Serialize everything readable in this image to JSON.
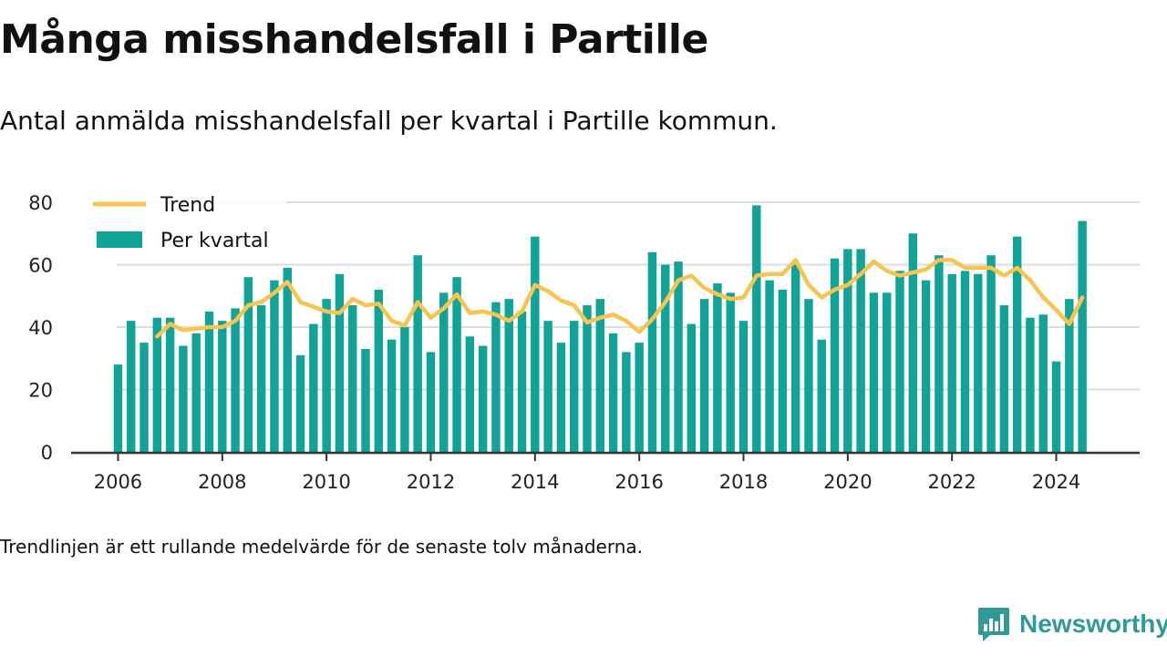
{
  "header": {
    "title": "Många misshandelsfall i Partille",
    "subtitle": "Antal anmälda misshandelsfall per kvartal i Partille kommun."
  },
  "footnote": "Trendlinjen är ett rullande medelvärde för de senaste tolv månaderna.",
  "brand": {
    "name": "Newsworthy",
    "icon": "bar-chart-speech-bubble-icon"
  },
  "colors": {
    "bars": "#0fa497",
    "trend": "#f8c450",
    "grid": "#dddddd",
    "axis": "#333333",
    "brand": "#2e9b98"
  },
  "chart_data": {
    "type": "bar",
    "title": "Många misshandelsfall i Partille",
    "subtitle": "Antal anmälda misshandelsfall per kvartal i Partille kommun.",
    "legend": {
      "placement": "top-left",
      "entries": [
        "Trend",
        "Per kvartal"
      ]
    },
    "grid": true,
    "ylim": [
      0,
      80
    ],
    "yticks": [
      0,
      20,
      40,
      60,
      80
    ],
    "xlim": [
      2005.1,
      2025.6
    ],
    "xticks": [
      2006,
      2008,
      2010,
      2012,
      2014,
      2016,
      2018,
      2020,
      2022,
      2024
    ],
    "x_start": 2006.0,
    "x_step": 0.25,
    "series": [
      {
        "name": "Per kvartal",
        "kind": "bar",
        "values": [
          28,
          42,
          35,
          43,
          43,
          34,
          38,
          45,
          42,
          46,
          56,
          47,
          55,
          59,
          31,
          41,
          49,
          57,
          47,
          33,
          52,
          36,
          40,
          63,
          32,
          51,
          56,
          37,
          34,
          48,
          49,
          45,
          69,
          42,
          35,
          42,
          47,
          49,
          38,
          32,
          35,
          64,
          60,
          61,
          41,
          49,
          54,
          51,
          42,
          79,
          55,
          52,
          60,
          49,
          36,
          62,
          65,
          65,
          51,
          51,
          58,
          70,
          55,
          63,
          57,
          58,
          57,
          63,
          47,
          69,
          43,
          44,
          29,
          49,
          74
        ]
      },
      {
        "name": "Trend",
        "kind": "line",
        "start_index": 3,
        "values": [
          37,
          41,
          39,
          39.5,
          40,
          40,
          42,
          47,
          48,
          51,
          54.5,
          48,
          46.5,
          45,
          44.5,
          49,
          47,
          47.5,
          42,
          40.5,
          48,
          43,
          46,
          50.5,
          44.5,
          45,
          44,
          42,
          45,
          53.5,
          51.5,
          48.5,
          47,
          41.5,
          43,
          44,
          42,
          38.5,
          42.5,
          48,
          55,
          56.5,
          52.5,
          50.5,
          49,
          49.5,
          56.5,
          57,
          57,
          61.5,
          53.5,
          49.5,
          52,
          53.5,
          57,
          61,
          58,
          56.5,
          57.5,
          58.5,
          61.5,
          61.5,
          59,
          59,
          59,
          56.5,
          59,
          55,
          49.5,
          45.5,
          41,
          49.5
        ]
      }
    ]
  }
}
